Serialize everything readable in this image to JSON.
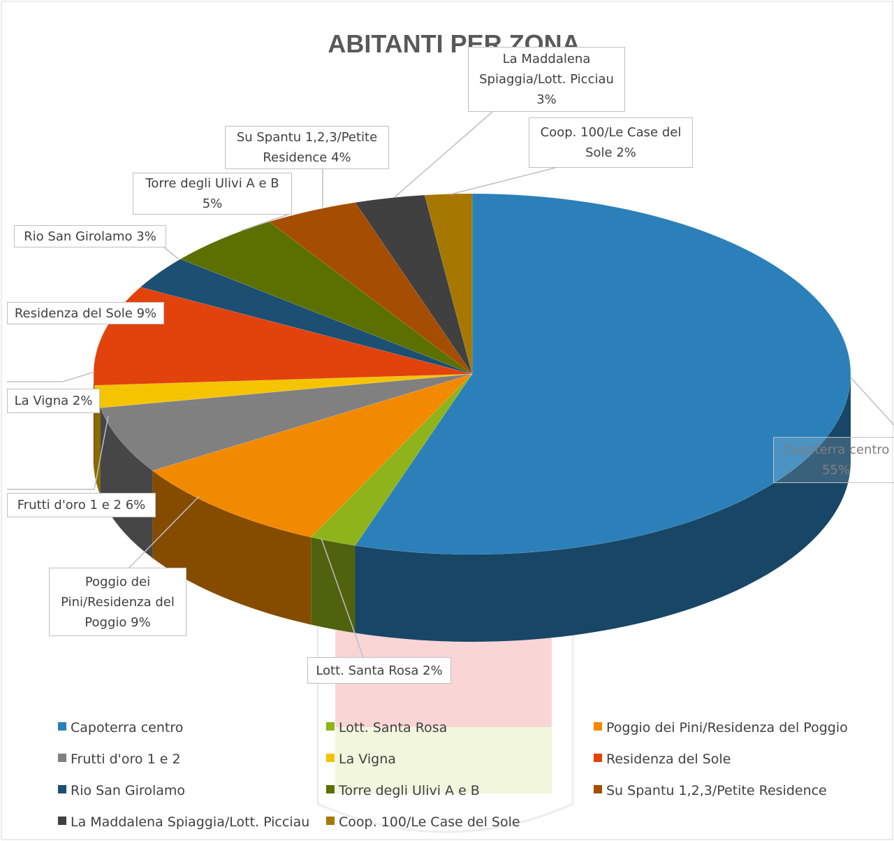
{
  "chart_data": {
    "type": "pie",
    "title": "ABITANTI PER ZONA",
    "categories": [
      "Capoterra centro",
      "Lott. Santa Rosa",
      "Poggio dei Pini/Residenza del Poggio",
      "Frutti d'oro 1 e 2",
      "La Vigna",
      "Residenza del Sole",
      "Rio San Girolamo",
      "Torre degli Ulivi A e B",
      "Su Spantu 1,2,3/Petite Residence",
      "La Maddalena Spiaggia/Lott. Picciau",
      "Coop. 100/Le Case del Sole"
    ],
    "values": [
      55,
      2,
      9,
      6,
      2,
      9,
      3,
      5,
      4,
      3,
      2
    ],
    "value_labels": [
      "55%",
      "2%",
      "9%",
      "6%",
      "2%",
      "9%",
      "3%",
      "5%",
      "4%",
      "3%",
      "2%"
    ],
    "colors": [
      "#2b80b9",
      "#8fb31a",
      "#f28a00",
      "#808080",
      "#f5c400",
      "#e2420c",
      "#1c4f72",
      "#5b7000",
      "#a54d00",
      "#404040",
      "#a67800"
    ],
    "legend": "bottom"
  }
}
